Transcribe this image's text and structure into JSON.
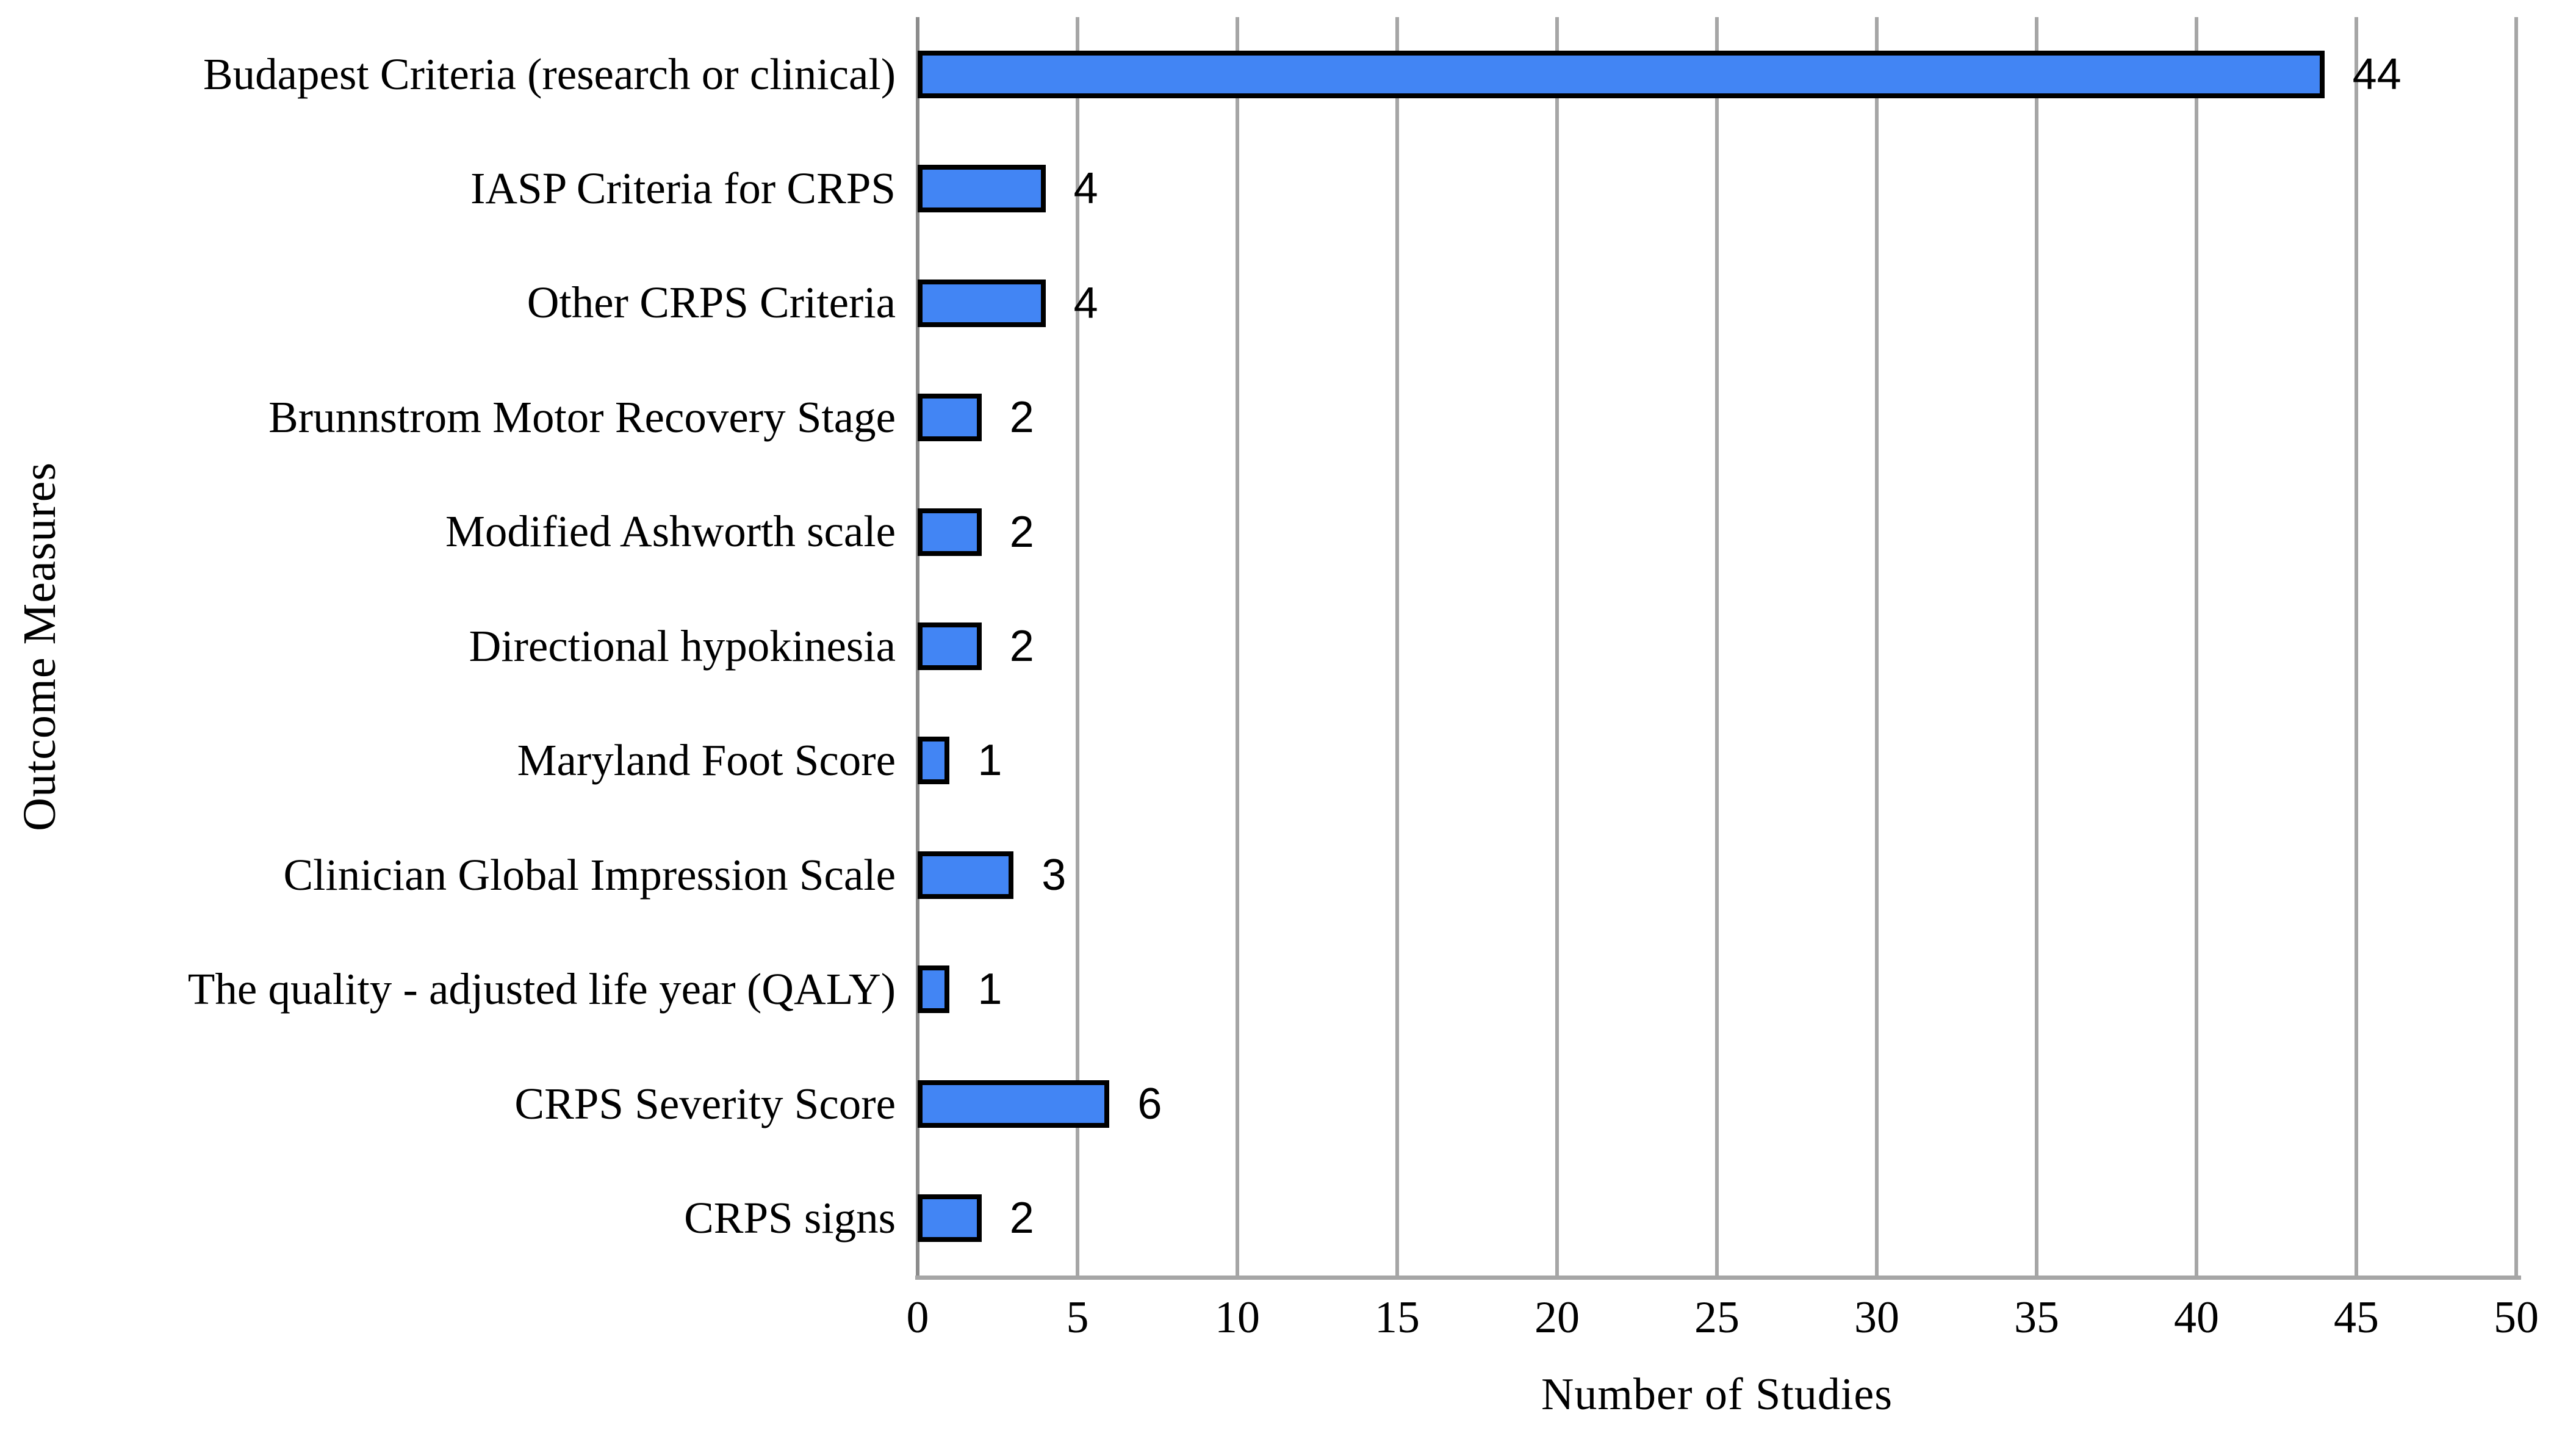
{
  "chart_data": {
    "type": "bar",
    "orientation": "horizontal",
    "title": "",
    "xlabel": "Number of Studies",
    "ylabel": "Outcome Measures",
    "categories": [
      "Budapest Criteria (research or clinical)",
      "IASP Criteria for CRPS",
      "Other CRPS Criteria",
      "Brunnstrom Motor Recovery Stage",
      "Modified Ashworth scale",
      "Directional hypokinesia",
      "Maryland Foot Score",
      "Clinician Global Impression Scale",
      "The quality - adjusted life year (QALY)",
      "CRPS Severity Score",
      "CRPS signs"
    ],
    "values": [
      44,
      4,
      4,
      2,
      2,
      2,
      1,
      3,
      1,
      6,
      2
    ],
    "data_labels": [
      "44",
      "4",
      "4",
      "2",
      "2",
      "2",
      "1",
      "3",
      "1",
      "6",
      "2"
    ],
    "xlim": [
      0,
      50
    ],
    "xticks": [
      0,
      5,
      10,
      15,
      20,
      25,
      30,
      35,
      40,
      45,
      50
    ],
    "grid": "vertical gridlines at every x tick",
    "legend": "none",
    "colors": {
      "bar_fill": "#4285F4",
      "bar_border": "#000000",
      "gridline": "#A6A6A6",
      "zero_axis_line": "#8C8C8C",
      "axis_line": "#A6A6A6",
      "text": "#000000",
      "background": "#FFFFFF"
    }
  }
}
